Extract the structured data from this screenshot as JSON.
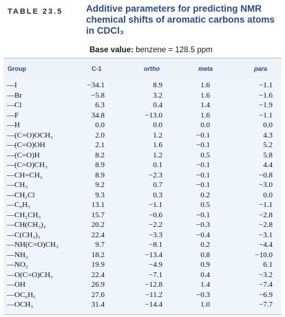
{
  "table_label": "TABLE 23.5",
  "title": "Additive parameters for predicting NMR chemical shifts of aromatic carbons atoms in CDCl₃",
  "base": {
    "label": "Base value:",
    "text": "benzene = 128.5 ppm"
  },
  "headers": {
    "group": "Group",
    "c1": "C-1",
    "ortho": "ortho",
    "meta": "meta",
    "para": "para"
  },
  "rows": [
    {
      "group": "—I",
      "c1": "−34.1",
      "ortho": "8.9",
      "meta": "1.6",
      "para": "−1.1"
    },
    {
      "group": "—Br",
      "c1": "−5.8",
      "ortho": "3.2",
      "meta": "1.6",
      "para": "−1.6"
    },
    {
      "group": "—Cl",
      "c1": "6.3",
      "ortho": "0.4",
      "meta": "1.4",
      "para": "−1.9"
    },
    {
      "group": "—F",
      "c1": "34.8",
      "ortho": "−13.0",
      "meta": "1.6",
      "para": "−1.1"
    },
    {
      "group": "—H",
      "c1": "0.0",
      "ortho": "0.0",
      "meta": "0.0",
      "para": "0.0"
    },
    {
      "group": "—(C=O)OCH₃",
      "c1": "2.0",
      "ortho": "1.2",
      "meta": "−0.1",
      "para": "4.3"
    },
    {
      "group": "—(C=O)OH",
      "c1": "2.1",
      "ortho": "1.6",
      "meta": "−0.1",
      "para": "5.2"
    },
    {
      "group": "—(C=O)H",
      "c1": "8.2",
      "ortho": "1.2",
      "meta": "0.5",
      "para": "5.8"
    },
    {
      "group": "—(C=O)CH₃",
      "c1": "8.9",
      "ortho": "0.1",
      "meta": "−0.1",
      "para": "4.4"
    },
    {
      "group": "—CH=CH₂",
      "c1": "8.9",
      "ortho": "−2.3",
      "meta": "−0.1",
      "para": "−0.8"
    },
    {
      "group": "—CH₃",
      "c1": "9.2",
      "ortho": "0.7",
      "meta": "−0.1",
      "para": "−3.0"
    },
    {
      "group": "—CH₂Cl",
      "c1": "9.3",
      "ortho": "0.3",
      "meta": "0.2",
      "para": "0.0"
    },
    {
      "group": "—C₆H₅",
      "c1": "13.1",
      "ortho": "−1.1",
      "meta": "0.5",
      "para": "−1.1"
    },
    {
      "group": "—CH₂CH₃",
      "c1": "15.7",
      "ortho": "−0.6",
      "meta": "−0.1",
      "para": "−2.8"
    },
    {
      "group": "—CH(CH₃)₂",
      "c1": "20.2",
      "ortho": "−2.2",
      "meta": "−0.3",
      "para": "−2.8"
    },
    {
      "group": "—C(CH₃)₃",
      "c1": "22.4",
      "ortho": "−3.3",
      "meta": "−0.4",
      "para": "−3.1"
    },
    {
      "group": "—NH(C=O)CH₃",
      "c1": "9.7",
      "ortho": "−8.1",
      "meta": "0.2",
      "para": "−4.4"
    },
    {
      "group": "—NH₂",
      "c1": "18.2",
      "ortho": "−13.4",
      "meta": "0.8",
      "para": "−10.0"
    },
    {
      "group": "—NO₂",
      "c1": "19.9",
      "ortho": "−4.9",
      "meta": "0.9",
      "para": "6.1"
    },
    {
      "group": "—O(C=O)CH₃",
      "c1": "22.4",
      "ortho": "−7.1",
      "meta": "0.4",
      "para": "−3.2"
    },
    {
      "group": "—OH",
      "c1": "26.9",
      "ortho": "−12.8",
      "meta": "1.4",
      "para": "−7.4"
    },
    {
      "group": "—OC₆H₅",
      "c1": "27.6",
      "ortho": "−11.2",
      "meta": "−0.3",
      "para": "−6.9"
    },
    {
      "group": "—OCH₃",
      "c1": "31.4",
      "ortho": "−14.4",
      "meta": "1.0",
      "para": "−7.7"
    }
  ]
}
